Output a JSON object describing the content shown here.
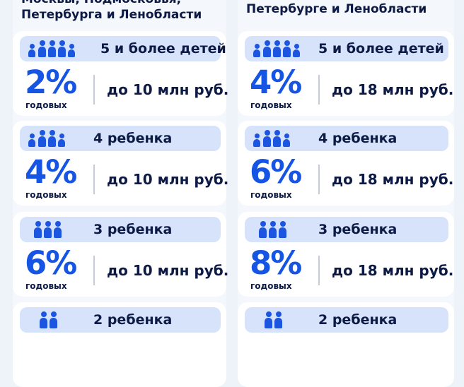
{
  "left": {
    "heading_lines": [
      "Москвы, Подмосковья,",
      "Петербурга и Ленобласти"
    ],
    "rows": [
      {
        "label": "5 и более детей",
        "icon": "five-children-icon",
        "rate": "2%",
        "rate_unit": "годовых",
        "limit": "до 10 млн руб."
      },
      {
        "label": "4 ребенка",
        "icon": "four-children-icon",
        "rate": "4%",
        "rate_unit": "годовых",
        "limit": "до 10 млн руб."
      },
      {
        "label": "3 ребенка",
        "icon": "three-children-icon",
        "rate": "6%",
        "rate_unit": "годовых",
        "limit": "до 10 млн руб."
      },
      {
        "label": "2 ребенка",
        "icon": "two-children-icon"
      }
    ]
  },
  "right": {
    "heading_lines": [
      "Петербурге и Ленобласти"
    ],
    "rows": [
      {
        "label": "5 и более детей",
        "icon": "five-children-icon",
        "rate": "4%",
        "rate_unit": "годовых",
        "limit": "до 18 млн руб."
      },
      {
        "label": "4 ребенка",
        "icon": "four-children-icon",
        "rate": "6%",
        "rate_unit": "годовых",
        "limit": "до 18 млн руб."
      },
      {
        "label": "3 ребенка",
        "icon": "three-children-icon",
        "rate": "8%",
        "rate_unit": "годовых",
        "limit": "до 18 млн руб."
      },
      {
        "label": "2 ребенка",
        "icon": "two-children-icon"
      }
    ]
  },
  "colors": {
    "accent": "#1655e4",
    "icon": "#1c55e0",
    "pill": "#d6e3fb",
    "text": "#0d1a45"
  }
}
